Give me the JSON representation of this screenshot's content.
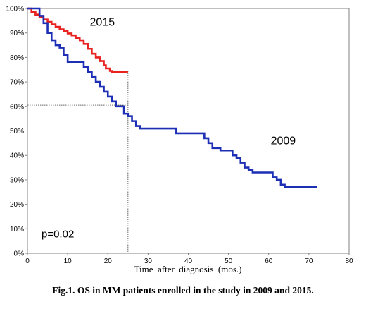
{
  "caption": "Fig.1. OS in MM patients enrolled in the study in 2009 and 2015.",
  "chart_data": {
    "type": "line",
    "line_shape": "step",
    "xlabel": "Time  after  diagnosis  (mos.)",
    "ylabel": "",
    "xlim": [
      0,
      80
    ],
    "ylim": [
      0,
      100
    ],
    "x_ticks": [
      0,
      10,
      20,
      30,
      40,
      50,
      60,
      70,
      80
    ],
    "y_ticks": [
      0,
      10,
      20,
      30,
      40,
      50,
      60,
      70,
      80,
      90,
      100
    ],
    "y_tick_suffix": "%",
    "grid": false,
    "series": [
      {
        "name": "2015",
        "color": "#e8221f",
        "points": [
          [
            0,
            100
          ],
          [
            1,
            98.5
          ],
          [
            2,
            97.5
          ],
          [
            3,
            96.5
          ],
          [
            4,
            95.5
          ],
          [
            5,
            94.5
          ],
          [
            6,
            93.5
          ],
          [
            7,
            92.5
          ],
          [
            8,
            91.5
          ],
          [
            9,
            90.7
          ],
          [
            10,
            89.8
          ],
          [
            11,
            89
          ],
          [
            12,
            88
          ],
          [
            13,
            87
          ],
          [
            14,
            85.5
          ],
          [
            15,
            83.5
          ],
          [
            16,
            81.5
          ],
          [
            17,
            80
          ],
          [
            18,
            78.5
          ],
          [
            19,
            76.8
          ],
          [
            19.5,
            75.5
          ],
          [
            20,
            75.5
          ],
          [
            20.5,
            74.5
          ],
          [
            21,
            74
          ],
          [
            25,
            74
          ]
        ]
      },
      {
        "name": "2009",
        "color": "#1c2fb5",
        "points": [
          [
            0,
            100
          ],
          [
            3,
            97
          ],
          [
            4,
            94
          ],
          [
            5,
            90
          ],
          [
            6,
            87
          ],
          [
            7,
            85
          ],
          [
            8,
            84
          ],
          [
            9,
            81
          ],
          [
            10,
            78
          ],
          [
            13,
            78
          ],
          [
            14,
            76
          ],
          [
            15,
            74
          ],
          [
            16,
            72
          ],
          [
            17,
            70
          ],
          [
            18,
            68
          ],
          [
            19,
            66
          ],
          [
            20,
            64
          ],
          [
            21,
            62
          ],
          [
            22,
            60
          ],
          [
            24,
            60
          ],
          [
            24,
            57
          ],
          [
            25,
            56
          ],
          [
            26,
            54
          ],
          [
            27,
            52
          ],
          [
            28,
            51
          ],
          [
            37,
            51
          ],
          [
            37,
            49
          ],
          [
            43,
            49
          ],
          [
            44,
            47
          ],
          [
            45,
            45
          ],
          [
            46,
            43
          ],
          [
            48,
            42
          ],
          [
            50,
            42
          ],
          [
            51,
            40
          ],
          [
            52,
            39
          ],
          [
            53,
            37
          ],
          [
            54,
            35
          ],
          [
            55,
            34
          ],
          [
            56,
            33
          ],
          [
            60,
            33
          ],
          [
            61,
            31
          ],
          [
            62,
            30
          ],
          [
            63,
            28
          ],
          [
            64,
            27
          ],
          [
            72,
            27
          ]
        ]
      }
    ],
    "reference_lines": [
      {
        "y": 74.5,
        "x_end": 25
      },
      {
        "y": 60.5,
        "x_end": 25
      },
      {
        "x": 25,
        "y_end": 74.5
      }
    ],
    "series_labels": [
      {
        "text": "2015",
        "x": 15.5,
        "y": 93
      },
      {
        "text": "2009",
        "x": 60.5,
        "y": 44.5
      }
    ],
    "annotation": {
      "text": "p=0.02",
      "x": 3.5,
      "y": 6.5
    }
  }
}
